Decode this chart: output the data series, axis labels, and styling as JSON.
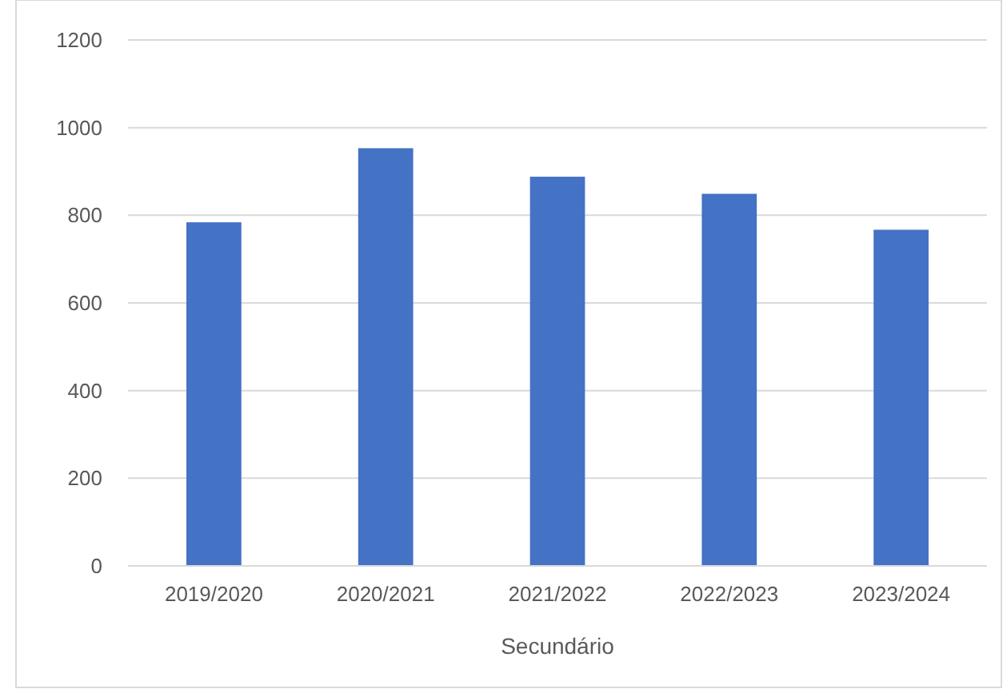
{
  "chart_data": {
    "type": "bar",
    "xlabel": "Secundário",
    "categories": [
      "2019/2020",
      "2020/2021",
      "2021/2022",
      "2022/2023",
      "2023/2024"
    ],
    "values": [
      784,
      953,
      888,
      849,
      767
    ],
    "color": "#4472c4",
    "ylim": [
      0,
      1200
    ],
    "yticks": [
      0,
      200,
      400,
      600,
      800,
      1000,
      1200
    ],
    "grid": "y"
  }
}
